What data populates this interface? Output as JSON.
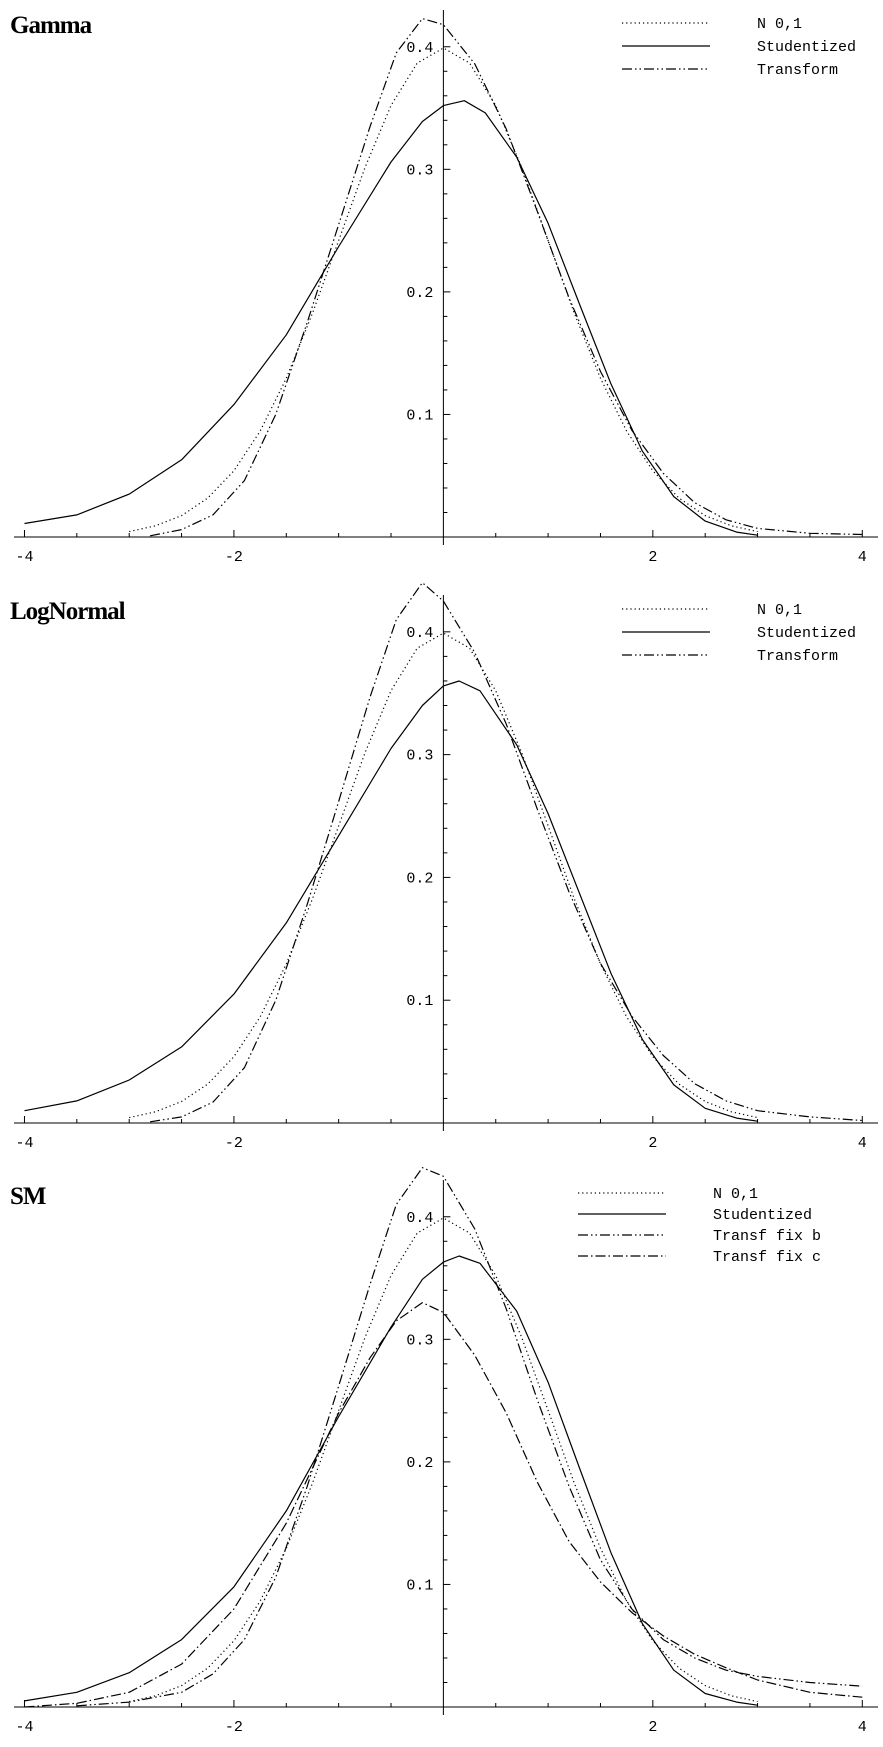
{
  "chart_data": [
    {
      "type": "line",
      "title": "Gamma",
      "xlim": [
        -4.1,
        4.15
      ],
      "ylim": [
        0,
        0.43
      ],
      "x_ticks": [
        "-4",
        "-2",
        "2",
        "4"
      ],
      "x_tick_values": [
        -4,
        -2,
        2,
        4
      ],
      "y_ticks": [
        "0.1",
        "0.2",
        "0.3",
        "0.4"
      ],
      "y_tick_values": [
        0.1,
        0.2,
        0.3,
        0.4
      ],
      "series": [
        {
          "name": "N 0,1",
          "style": "dotted",
          "points": [
            [
              -3.0,
              0.0044
            ],
            [
              -2.75,
              0.0091
            ],
            [
              -2.5,
              0.0175
            ],
            [
              -2.25,
              0.0317
            ],
            [
              -2.0,
              0.054
            ],
            [
              -1.75,
              0.0863
            ],
            [
              -1.5,
              0.1295
            ],
            [
              -1.25,
              0.1826
            ],
            [
              -1.0,
              0.242
            ],
            [
              -0.75,
              0.3011
            ],
            [
              -0.5,
              0.3521
            ],
            [
              -0.25,
              0.3867
            ],
            [
              0.0,
              0.399
            ],
            [
              0.25,
              0.3867
            ],
            [
              0.5,
              0.3521
            ],
            [
              0.75,
              0.3011
            ],
            [
              1.0,
              0.242
            ],
            [
              1.25,
              0.1826
            ],
            [
              1.5,
              0.1295
            ],
            [
              1.75,
              0.0863
            ],
            [
              2.0,
              0.054
            ],
            [
              2.25,
              0.0317
            ],
            [
              2.5,
              0.0175
            ],
            [
              2.75,
              0.0091
            ],
            [
              3.0,
              0.0044
            ]
          ]
        },
        {
          "name": "Studentized",
          "style": "solid",
          "points": [
            [
              -4.0,
              0.011
            ],
            [
              -3.5,
              0.018
            ],
            [
              -3.0,
              0.035
            ],
            [
              -2.5,
              0.063
            ],
            [
              -2.0,
              0.108
            ],
            [
              -1.5,
              0.165
            ],
            [
              -1.0,
              0.237
            ],
            [
              -0.5,
              0.306
            ],
            [
              -0.2,
              0.339
            ],
            [
              0.0,
              0.352
            ],
            [
              0.2,
              0.356
            ],
            [
              0.4,
              0.346
            ],
            [
              0.7,
              0.31
            ],
            [
              1.0,
              0.256
            ],
            [
              1.3,
              0.19
            ],
            [
              1.6,
              0.125
            ],
            [
              1.9,
              0.07
            ],
            [
              2.2,
              0.033
            ],
            [
              2.5,
              0.013
            ],
            [
              2.8,
              0.004
            ],
            [
              3.0,
              0.0015
            ]
          ]
        },
        {
          "name": "Transform",
          "style": "dashdotdot",
          "points": [
            [
              -2.8,
              0.001
            ],
            [
              -2.5,
              0.006
            ],
            [
              -2.2,
              0.018
            ],
            [
              -1.9,
              0.046
            ],
            [
              -1.6,
              0.1
            ],
            [
              -1.3,
              0.175
            ],
            [
              -1.0,
              0.255
            ],
            [
              -0.7,
              0.335
            ],
            [
              -0.45,
              0.395
            ],
            [
              -0.2,
              0.423
            ],
            [
              0.0,
              0.418
            ],
            [
              0.3,
              0.386
            ],
            [
              0.6,
              0.333
            ],
            [
              0.9,
              0.265
            ],
            [
              1.2,
              0.195
            ],
            [
              1.5,
              0.135
            ],
            [
              1.8,
              0.087
            ],
            [
              2.1,
              0.052
            ],
            [
              2.4,
              0.028
            ],
            [
              2.7,
              0.014
            ],
            [
              3.0,
              0.007
            ],
            [
              3.5,
              0.003
            ],
            [
              4.0,
              0.002
            ]
          ]
        }
      ],
      "legend": [
        "N 0,1",
        "Studentized",
        "Transform"
      ]
    },
    {
      "type": "line",
      "title": "LogNormal",
      "xlim": [
        -4.1,
        4.15
      ],
      "ylim": [
        0,
        0.43
      ],
      "x_ticks": [
        "-4",
        "-2",
        "2",
        "4"
      ],
      "x_tick_values": [
        -4,
        -2,
        2,
        4
      ],
      "y_ticks": [
        "0.1",
        "0.2",
        "0.3",
        "0.4"
      ],
      "y_tick_values": [
        0.1,
        0.2,
        0.3,
        0.4
      ],
      "series": [
        {
          "name": "N 0,1",
          "style": "dotted",
          "points": [
            [
              -3.0,
              0.0044
            ],
            [
              -2.75,
              0.0091
            ],
            [
              -2.5,
              0.0175
            ],
            [
              -2.25,
              0.0317
            ],
            [
              -2.0,
              0.054
            ],
            [
              -1.75,
              0.0863
            ],
            [
              -1.5,
              0.1295
            ],
            [
              -1.25,
              0.1826
            ],
            [
              -1.0,
              0.242
            ],
            [
              -0.75,
              0.3011
            ],
            [
              -0.5,
              0.3521
            ],
            [
              -0.25,
              0.3867
            ],
            [
              0.0,
              0.399
            ],
            [
              0.25,
              0.3867
            ],
            [
              0.5,
              0.3521
            ],
            [
              0.75,
              0.3011
            ],
            [
              1.0,
              0.242
            ],
            [
              1.25,
              0.1826
            ],
            [
              1.5,
              0.1295
            ],
            [
              1.75,
              0.0863
            ],
            [
              2.0,
              0.054
            ],
            [
              2.25,
              0.0317
            ],
            [
              2.5,
              0.0175
            ],
            [
              2.75,
              0.0091
            ],
            [
              3.0,
              0.0044
            ]
          ]
        },
        {
          "name": "Studentized",
          "style": "solid",
          "points": [
            [
              -4.0,
              0.01
            ],
            [
              -3.5,
              0.018
            ],
            [
              -3.0,
              0.035
            ],
            [
              -2.5,
              0.062
            ],
            [
              -2.0,
              0.105
            ],
            [
              -1.5,
              0.163
            ],
            [
              -1.0,
              0.234
            ],
            [
              -0.5,
              0.305
            ],
            [
              -0.2,
              0.34
            ],
            [
              0.0,
              0.356
            ],
            [
              0.15,
              0.36
            ],
            [
              0.35,
              0.352
            ],
            [
              0.7,
              0.308
            ],
            [
              1.0,
              0.252
            ],
            [
              1.3,
              0.187
            ],
            [
              1.6,
              0.122
            ],
            [
              1.9,
              0.068
            ],
            [
              2.2,
              0.031
            ],
            [
              2.5,
              0.012
            ],
            [
              2.8,
              0.004
            ],
            [
              3.0,
              0.0015
            ]
          ]
        },
        {
          "name": "Transform",
          "style": "dashdotdot",
          "points": [
            [
              -2.8,
              0.001
            ],
            [
              -2.5,
              0.005
            ],
            [
              -2.2,
              0.017
            ],
            [
              -1.9,
              0.045
            ],
            [
              -1.6,
              0.1
            ],
            [
              -1.3,
              0.178
            ],
            [
              -1.0,
              0.262
            ],
            [
              -0.7,
              0.347
            ],
            [
              -0.45,
              0.41
            ],
            [
              -0.2,
              0.44
            ],
            [
              0.0,
              0.425
            ],
            [
              0.3,
              0.383
            ],
            [
              0.6,
              0.325
            ],
            [
              0.9,
              0.255
            ],
            [
              1.2,
              0.188
            ],
            [
              1.5,
              0.13
            ],
            [
              1.8,
              0.087
            ],
            [
              2.1,
              0.055
            ],
            [
              2.4,
              0.032
            ],
            [
              2.7,
              0.018
            ],
            [
              3.0,
              0.01
            ],
            [
              3.5,
              0.005
            ],
            [
              4.0,
              0.002
            ]
          ]
        }
      ],
      "legend": [
        "N 0,1",
        "Studentized",
        "Transform"
      ]
    },
    {
      "type": "line",
      "title": "SM",
      "xlim": [
        -4.1,
        4.15
      ],
      "ylim": [
        0,
        0.43
      ],
      "x_ticks": [
        "-4",
        "-2",
        "2",
        "4"
      ],
      "x_tick_values": [
        -4,
        -2,
        2,
        4
      ],
      "y_ticks": [
        "0.1",
        "0.2",
        "0.3",
        "0.4"
      ],
      "y_tick_values": [
        0.1,
        0.2,
        0.3,
        0.4
      ],
      "series": [
        {
          "name": "N 0,1",
          "style": "dotted",
          "points": [
            [
              -3.0,
              0.0044
            ],
            [
              -2.75,
              0.0091
            ],
            [
              -2.5,
              0.0175
            ],
            [
              -2.25,
              0.0317
            ],
            [
              -2.0,
              0.054
            ],
            [
              -1.75,
              0.0863
            ],
            [
              -1.5,
              0.1295
            ],
            [
              -1.25,
              0.1826
            ],
            [
              -1.0,
              0.242
            ],
            [
              -0.75,
              0.3011
            ],
            [
              -0.5,
              0.3521
            ],
            [
              -0.25,
              0.3867
            ],
            [
              0.0,
              0.399
            ],
            [
              0.25,
              0.3867
            ],
            [
              0.5,
              0.3521
            ],
            [
              0.75,
              0.3011
            ],
            [
              1.0,
              0.242
            ],
            [
              1.25,
              0.1826
            ],
            [
              1.5,
              0.1295
            ],
            [
              1.75,
              0.0863
            ],
            [
              2.0,
              0.054
            ],
            [
              2.25,
              0.0317
            ],
            [
              2.5,
              0.0175
            ],
            [
              2.75,
              0.0091
            ],
            [
              3.0,
              0.0044
            ]
          ]
        },
        {
          "name": "Studentized",
          "style": "solid",
          "points": [
            [
              -4.0,
              0.005
            ],
            [
              -3.5,
              0.012
            ],
            [
              -3.0,
              0.028
            ],
            [
              -2.5,
              0.055
            ],
            [
              -2.0,
              0.098
            ],
            [
              -1.5,
              0.16
            ],
            [
              -1.0,
              0.237
            ],
            [
              -0.5,
              0.31
            ],
            [
              -0.2,
              0.349
            ],
            [
              0.0,
              0.363
            ],
            [
              0.15,
              0.368
            ],
            [
              0.35,
              0.362
            ],
            [
              0.7,
              0.323
            ],
            [
              1.0,
              0.265
            ],
            [
              1.3,
              0.195
            ],
            [
              1.6,
              0.126
            ],
            [
              1.9,
              0.068
            ],
            [
              2.2,
              0.03
            ],
            [
              2.5,
              0.011
            ],
            [
              2.8,
              0.004
            ],
            [
              3.0,
              0.0015
            ]
          ]
        },
        {
          "name": "Transf fix b",
          "style": "dashdotdot",
          "points": [
            [
              -3.5,
              0.001
            ],
            [
              -3.0,
              0.004
            ],
            [
              -2.5,
              0.012
            ],
            [
              -2.2,
              0.027
            ],
            [
              -1.9,
              0.055
            ],
            [
              -1.6,
              0.106
            ],
            [
              -1.3,
              0.18
            ],
            [
              -1.0,
              0.262
            ],
            [
              -0.7,
              0.345
            ],
            [
              -0.45,
              0.41
            ],
            [
              -0.2,
              0.44
            ],
            [
              0.0,
              0.433
            ],
            [
              0.3,
              0.39
            ],
            [
              0.6,
              0.325
            ],
            [
              0.9,
              0.25
            ],
            [
              1.2,
              0.18
            ],
            [
              1.5,
              0.12
            ],
            [
              1.8,
              0.08
            ],
            [
              2.1,
              0.055
            ],
            [
              2.4,
              0.04
            ],
            [
              2.7,
              0.03
            ],
            [
              3.0,
              0.025
            ],
            [
              3.5,
              0.02
            ],
            [
              4.0,
              0.017
            ]
          ]
        },
        {
          "name": "Transf fix c",
          "style": "dashdot",
          "points": [
            [
              -4.0,
              0.0
            ],
            [
              -3.5,
              0.003
            ],
            [
              -3.0,
              0.012
            ],
            [
              -2.5,
              0.035
            ],
            [
              -2.0,
              0.08
            ],
            [
              -1.5,
              0.15
            ],
            [
              -1.0,
              0.24
            ],
            [
              -0.7,
              0.285
            ],
            [
              -0.45,
              0.315
            ],
            [
              -0.2,
              0.33
            ],
            [
              0.0,
              0.322
            ],
            [
              0.3,
              0.287
            ],
            [
              0.6,
              0.24
            ],
            [
              0.9,
              0.183
            ],
            [
              1.2,
              0.135
            ],
            [
              1.5,
              0.102
            ],
            [
              1.8,
              0.077
            ],
            [
              2.1,
              0.058
            ],
            [
              2.4,
              0.043
            ],
            [
              2.7,
              0.032
            ],
            [
              3.0,
              0.022
            ],
            [
              3.5,
              0.012
            ],
            [
              4.0,
              0.008
            ]
          ]
        }
      ],
      "legend": [
        "N 0,1",
        "Studentized",
        "Transf fix b",
        "Transf fix c"
      ]
    }
  ]
}
